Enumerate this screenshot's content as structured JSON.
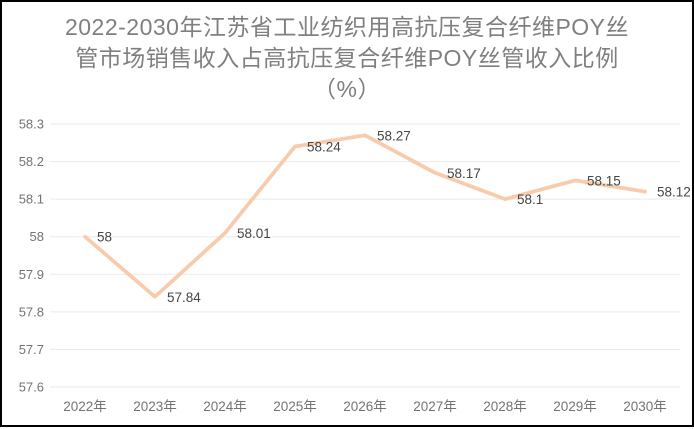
{
  "chart_data": {
    "type": "line",
    "title": "2022-2030年江苏省工业纺织用高抗压复合纤维POY丝管市场销售收入占高抗压复合纤维POY丝管收入比例（%）",
    "title_lines": [
      "2022-2030年江苏省工业纺织用高抗压复合纤维POY丝",
      "管市场销售收入占高抗压复合纤维POY丝管收入比例",
      "（%）"
    ],
    "categories": [
      "2022年",
      "2023年",
      "2024年",
      "2025年",
      "2026年",
      "2027年",
      "2028年",
      "2029年",
      "2030年"
    ],
    "values": [
      58,
      57.84,
      58.01,
      58.24,
      58.27,
      58.17,
      58.1,
      58.15,
      58.12
    ],
    "data_labels": [
      "58",
      "57.84",
      "58.01",
      "58.24",
      "58.27",
      "58.17",
      "58.1",
      "58.15",
      "58.12"
    ],
    "y_ticks": [
      "58.3",
      "58.2",
      "58.1",
      "58",
      "57.9",
      "57.8",
      "57.7",
      "57.6"
    ],
    "ylim": [
      57.6,
      58.3
    ],
    "xlabel": "",
    "ylabel": "",
    "grid": true,
    "legend_position": "none",
    "colors": {
      "line": "#f8cbad",
      "data_label": "#464646",
      "axis_label": "#737373",
      "gridline": "#eaeaea",
      "title": "#7f7f7f",
      "background": "#ffffff",
      "border": "#000000"
    }
  }
}
